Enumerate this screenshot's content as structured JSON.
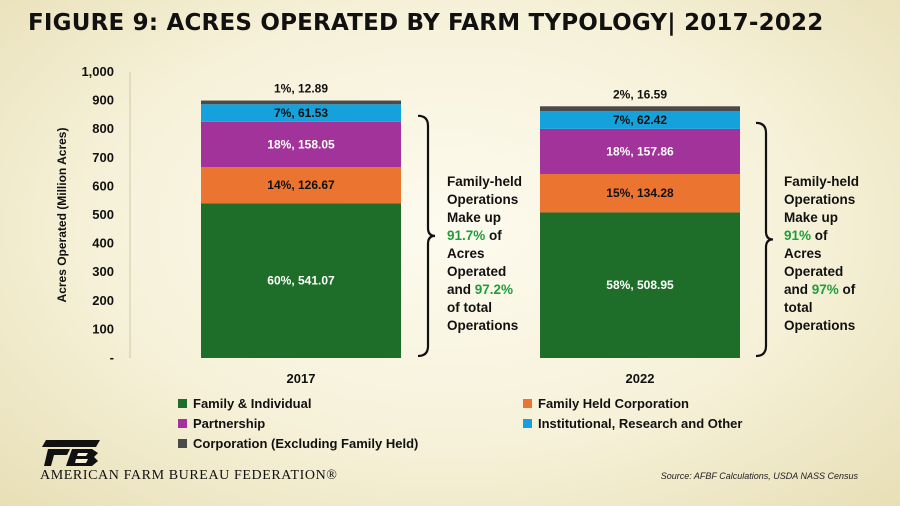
{
  "title": "FIGURE 9: ACRES OPERATED BY FARM TYPOLOGY| 2017-2022",
  "chart_data": {
    "type": "bar",
    "stacked": true,
    "categories": [
      "2017",
      "2022"
    ],
    "ylabel": "Acres Operated (Million Acres)",
    "ylim": [
      0,
      1000
    ],
    "yticks": [
      0,
      100,
      200,
      300,
      400,
      500,
      600,
      700,
      800,
      900,
      1000
    ],
    "ytick_labels": [
      "-",
      "100",
      "200",
      "300",
      "400",
      "500",
      "600",
      "700",
      "800",
      "900",
      "1,000"
    ],
    "grid": false,
    "legend_position": "bottom",
    "series": [
      {
        "name": "Family & Individual",
        "color": "#1e6e2a",
        "values": [
          541.07,
          508.95
        ],
        "labels": [
          "60%, 541.07",
          "58%, 508.95"
        ],
        "label_color": "#ffffff"
      },
      {
        "name": "Family Held Corporation",
        "color": "#ec7431",
        "values": [
          126.67,
          134.28
        ],
        "labels": [
          "14%, 126.67",
          "15%, 134.28"
        ],
        "label_color": "#111111"
      },
      {
        "name": "Partnership",
        "color": "#a1339a",
        "values": [
          158.05,
          157.86
        ],
        "labels": [
          "18%, 158.05",
          "18%, 157.86"
        ],
        "label_color": "#ffffff"
      },
      {
        "name": "Institutional, Research and Other",
        "color": "#15a2dc",
        "values": [
          61.53,
          62.42
        ],
        "labels": [
          "7%, 61.53",
          "7%, 62.42"
        ],
        "label_color": "#111111"
      },
      {
        "name": "Corporation (Excluding Family Held)",
        "color": "#4a4a4a",
        "values": [
          12.89,
          16.59
        ],
        "labels": [
          "1%, 12.89",
          "2%, 16.59"
        ],
        "label_color": "#111111"
      }
    ],
    "annotations": [
      {
        "year": "2017",
        "lines": [
          [
            {
              "t": "Family-held"
            }
          ],
          [
            {
              "t": "Operations"
            }
          ],
          [
            {
              "t": "Make up"
            }
          ],
          [
            {
              "t": "91.7%",
              "hl": true
            },
            {
              "t": " of"
            }
          ],
          [
            {
              "t": "Acres"
            }
          ],
          [
            {
              "t": "Operated"
            }
          ],
          [
            {
              "t": "and "
            },
            {
              "t": "97.2%",
              "hl": true
            }
          ],
          [
            {
              "t": "of total"
            }
          ],
          [
            {
              "t": "Operations"
            }
          ]
        ]
      },
      {
        "year": "2022",
        "lines": [
          [
            {
              "t": "Family-held"
            }
          ],
          [
            {
              "t": "Operations"
            }
          ],
          [
            {
              "t": "Make up"
            }
          ],
          [
            {
              "t": "91%",
              "hl": true
            },
            {
              "t": " of"
            }
          ],
          [
            {
              "t": "Acres"
            }
          ],
          [
            {
              "t": "Operated"
            }
          ],
          [
            {
              "t": "and "
            },
            {
              "t": "97%",
              "hl": true
            },
            {
              "t": " of"
            }
          ],
          [
            {
              "t": "total"
            }
          ],
          [
            {
              "t": "Operations"
            }
          ]
        ]
      }
    ]
  },
  "colors": {
    "highlight": "#1f9e3a"
  },
  "footer": {
    "organization": "AMERICAN FARM BUREAU FEDERATION®",
    "logo_letters": "FB",
    "source": "Source: AFBF Calculations, USDA NASS Census"
  }
}
